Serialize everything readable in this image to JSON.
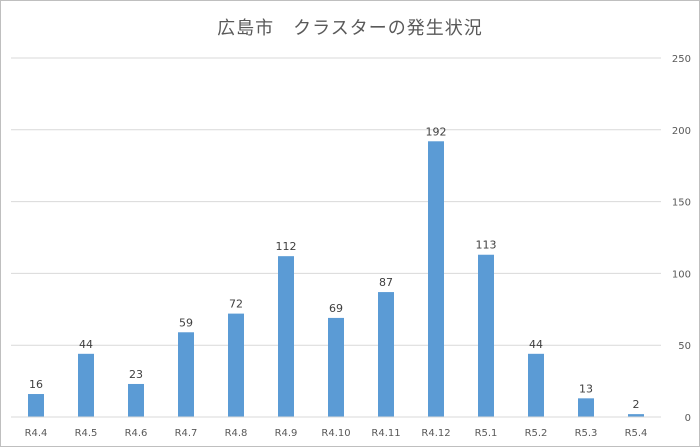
{
  "chart_data": {
    "type": "bar",
    "title": "広島市　クラスターの発生状況",
    "categories": [
      "R4.4",
      "R4.5",
      "R4.6",
      "R4.7",
      "R4.8",
      "R4.9",
      "R4.10",
      "R4.11",
      "R4.12",
      "R5.1",
      "R5.2",
      "R5.3",
      "R5.4"
    ],
    "series": [
      {
        "values": [
          16,
          44,
          23,
          59,
          72,
          112,
          69,
          87,
          192,
          113,
          44,
          13,
          2
        ],
        "color": "#5b9bd5"
      }
    ],
    "ylim": [
      0,
      250
    ],
    "yticks": [
      0,
      50,
      100,
      150,
      200,
      250
    ],
    "yaxis_position": "right",
    "grid": true,
    "data_labels": true,
    "legend": "none",
    "gridline_color": "#d9d9d9",
    "text_color": "#595959"
  }
}
